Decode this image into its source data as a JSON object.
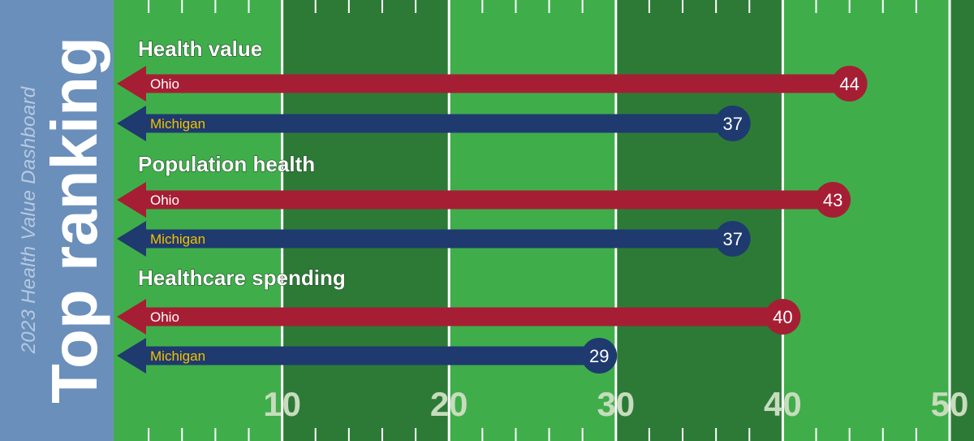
{
  "sidebar": {
    "subtitle": "2023 Health Value Dashboard",
    "title": "Top ranking"
  },
  "colors": {
    "field_light": "#3fae4a",
    "field_dark": "#2d7a37",
    "ohio": "#a61e34",
    "michigan": "#1f3a6e",
    "michigan_label": "#f2c200",
    "sidebar": "#6a8fbb",
    "yard_number": "#c7dcbd"
  },
  "chart_data": {
    "type": "bar",
    "orientation": "horizontal",
    "xlim": [
      0,
      50
    ],
    "x_ticks": [
      10,
      20,
      30,
      40,
      50
    ],
    "groups": [
      {
        "title": "Health value",
        "bars": [
          {
            "name": "Ohio",
            "value": 44
          },
          {
            "name": "Michigan",
            "value": 37
          }
        ]
      },
      {
        "title": "Population health",
        "bars": [
          {
            "name": "Ohio",
            "value": 43
          },
          {
            "name": "Michigan",
            "value": 37
          }
        ]
      },
      {
        "title": "Healthcare spending",
        "bars": [
          {
            "name": "Ohio",
            "value": 40
          },
          {
            "name": "Michigan",
            "value": 29
          }
        ]
      }
    ]
  }
}
